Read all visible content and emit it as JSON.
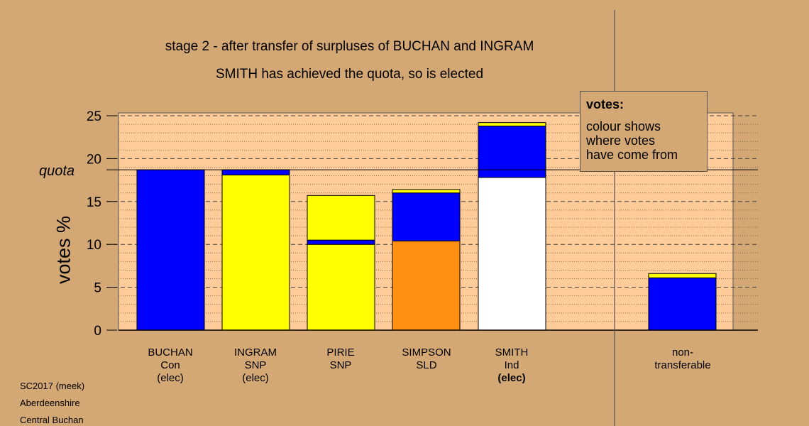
{
  "chart_data": {
    "type": "bar",
    "stacked": true,
    "title": "stage 2 - after transfer of surpluses of BUCHAN and INGRAM",
    "subtitle": "SMITH has achieved the quota, so is elected",
    "ylabel": "votes %",
    "ylim": [
      0,
      25
    ],
    "yticks": [
      0,
      5,
      10,
      15,
      20,
      25
    ],
    "quota": 18.7,
    "quota_label": "quota",
    "categories": [
      {
        "name": "BUCHAN",
        "party": "Con",
        "status": "(elec)",
        "status_bold": false,
        "segments": [
          {
            "color": "#0000ff",
            "value": 18.7
          }
        ]
      },
      {
        "name": "INGRAM",
        "party": "SNP",
        "status": "(elec)",
        "status_bold": false,
        "segments": [
          {
            "color": "#ffff00",
            "value": 18.1
          },
          {
            "color": "#0000ff",
            "value": 0.6
          }
        ]
      },
      {
        "name": "PIRIE",
        "party": "SNP",
        "status": "",
        "status_bold": false,
        "segments": [
          {
            "color": "#ffff00",
            "value": 10.0
          },
          {
            "color": "#0000ff",
            "value": 0.5
          },
          {
            "color": "#ffff00",
            "value": 5.2
          }
        ]
      },
      {
        "name": "SIMPSON",
        "party": "SLD",
        "status": "",
        "status_bold": false,
        "segments": [
          {
            "color": "#ff9010",
            "value": 10.4
          },
          {
            "color": "#0000ff",
            "value": 5.6
          },
          {
            "color": "#ffff00",
            "value": 0.4
          }
        ]
      },
      {
        "name": "SMITH",
        "party": "Ind",
        "status": "(elec)",
        "status_bold": true,
        "segments": [
          {
            "color": "#ffffff",
            "value": 17.8
          },
          {
            "color": "#0000ff",
            "value": 6.0
          },
          {
            "color": "#ffff00",
            "value": 0.4
          }
        ]
      },
      {
        "name": "non-",
        "party": "transferable",
        "status": "",
        "status_bold": false,
        "segments": [
          {
            "color": "#0000ff",
            "value": 6.1
          },
          {
            "color": "#ffff00",
            "value": 0.5
          }
        ]
      }
    ],
    "legend": {
      "heading": "votes:",
      "lines": [
        "colour shows",
        "where votes",
        "have come from"
      ]
    },
    "grid": true,
    "plot_background": "#ffcc99"
  },
  "source": [
    "SC2017 (meek)",
    "Aberdeenshire",
    "Central Buchan"
  ]
}
